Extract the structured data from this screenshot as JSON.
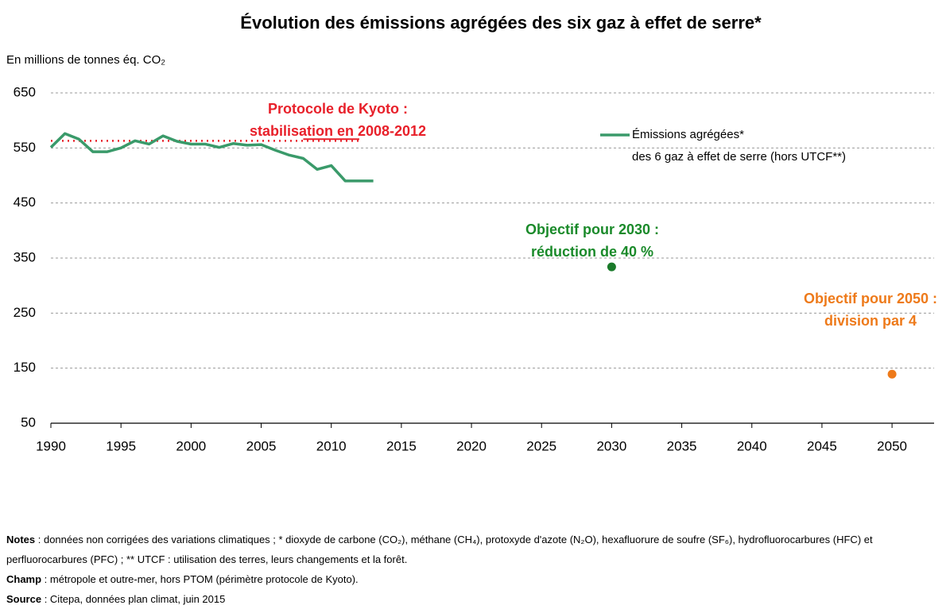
{
  "chart_data": {
    "type": "line",
    "title": "Évolution des émissions agrégées des six gaz à effet de serre*",
    "y_label": "En millions de tonnes éq. CO₂",
    "xlim": [
      1990,
      2053
    ],
    "ylim": [
      50,
      650
    ],
    "xticks": [
      1990,
      1995,
      2000,
      2005,
      2010,
      2015,
      2020,
      2025,
      2030,
      2035,
      2040,
      2045,
      2050
    ],
    "yticks": [
      50,
      150,
      250,
      350,
      450,
      550,
      650
    ],
    "grid": true,
    "series": [
      {
        "name": [
          "Émissions agrégées*",
          "des 6 gaz à effet de serre (hors UTCF**)"
        ],
        "color": "#3a9a6a",
        "x": [
          1990,
          1991,
          1992,
          1993,
          1994,
          1995,
          1996,
          1997,
          1998,
          1999,
          2000,
          2001,
          2002,
          2003,
          2004,
          2005,
          2006,
          2007,
          2008,
          2009,
          2010,
          2011,
          2012,
          2013
        ],
        "values": [
          551,
          576,
          566,
          543,
          543,
          550,
          563,
          557,
          572,
          562,
          557,
          557,
          551,
          558,
          555,
          556,
          546,
          537,
          531,
          511,
          518,
          490,
          490,
          490
        ]
      }
    ],
    "reference_lines": [
      {
        "x": [
          1990,
          2012
        ],
        "values": [
          563,
          563
        ],
        "color": "#e8202a",
        "style": "dotted"
      },
      {
        "x": [
          2008,
          2012
        ],
        "values": [
          566,
          566
        ],
        "color": "#e8202a",
        "style": "solid"
      }
    ],
    "target_points": [
      {
        "x": [
          2030
        ],
        "values": [
          334
        ],
        "color": "#1a7a2a"
      },
      {
        "x": [
          2050
        ],
        "values": [
          139
        ],
        "color": "#ee7a1a"
      }
    ],
    "annotations": [
      {
        "lines": [
          "Protocole de Kyoto :",
          "stabilisation en 2008-2012"
        ],
        "color": "#e8202a"
      },
      {
        "lines": [
          "Objectif pour 2030 :",
          "réduction de 40 %"
        ],
        "color": "#1a8a2a"
      },
      {
        "lines": [
          "Objectif pour 2050 :",
          "division par 4"
        ],
        "color": "#ee7a1a"
      }
    ]
  },
  "notes": [
    {
      "label": "Notes",
      "text": " : données non corrigées des variations climatiques ; * dioxyde de carbone (CO₂), méthane (CH₄), protoxyde d'azote (N₂O), hexafluorure de soufre (SF₆), hydrofluorocarbures (HFC) et perfluorocarbures (PFC) ; ** UTCF : utilisation des terres, leurs changements et la forêt."
    },
    {
      "label": "Champ",
      "text": " : métropole et outre-mer, hors PTOM (périmètre protocole de Kyoto)."
    },
    {
      "label": "Source",
      "text": " : Citepa, données plan climat, juin 2015"
    }
  ]
}
